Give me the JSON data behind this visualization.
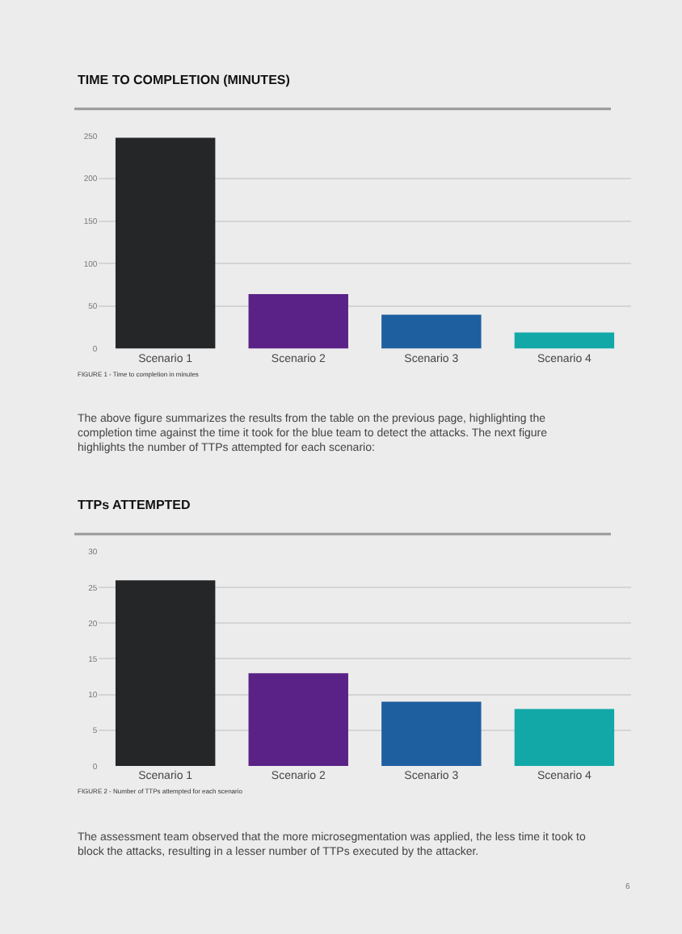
{
  "chart_data": [
    {
      "type": "bar",
      "title": "TIME TO COMPLETION (MINUTES)",
      "categories": [
        "Scenario 1",
        "Scenario 2",
        "Scenario 3",
        "Scenario 4"
      ],
      "values": [
        248,
        64,
        40,
        19
      ],
      "colors": [
        "#242628",
        "#5a2286",
        "#1e5fa0",
        "#12a8a8"
      ],
      "ylim": [
        0,
        250
      ],
      "yticks": [
        0,
        50,
        100,
        150,
        200,
        250
      ],
      "grid": "y",
      "annotations": [
        "FIGURE 1 - Time to completion in minutes",
        "The above figure summarizes the results from the table on the previous page, highlighting the completion time against the time it took for the blue team to detect the attacks. The next figure highlights the number of TTPs attempted for each scenario:"
      ]
    },
    {
      "type": "bar",
      "title": "TTPs ATTEMPTED",
      "categories": [
        "Scenario 1",
        "Scenario 2",
        "Scenario 3",
        "Scenario 4"
      ],
      "values": [
        26,
        13,
        9,
        8
      ],
      "colors": [
        "#242628",
        "#5a2286",
        "#1e5fa0",
        "#12a8a8"
      ],
      "ylim": [
        0,
        30
      ],
      "yticks": [
        0,
        5,
        10,
        15,
        20,
        25,
        30
      ],
      "grid": "y",
      "annotations": [
        "FIGURE 2 - Number of TTPs attempted for each scenario",
        "The assessment team observed that the more microsegmentation was applied, the less time it took to block the attacks, resulting in a lesser number of TTPs executed by the attacker.",
        "6"
      ]
    }
  ]
}
